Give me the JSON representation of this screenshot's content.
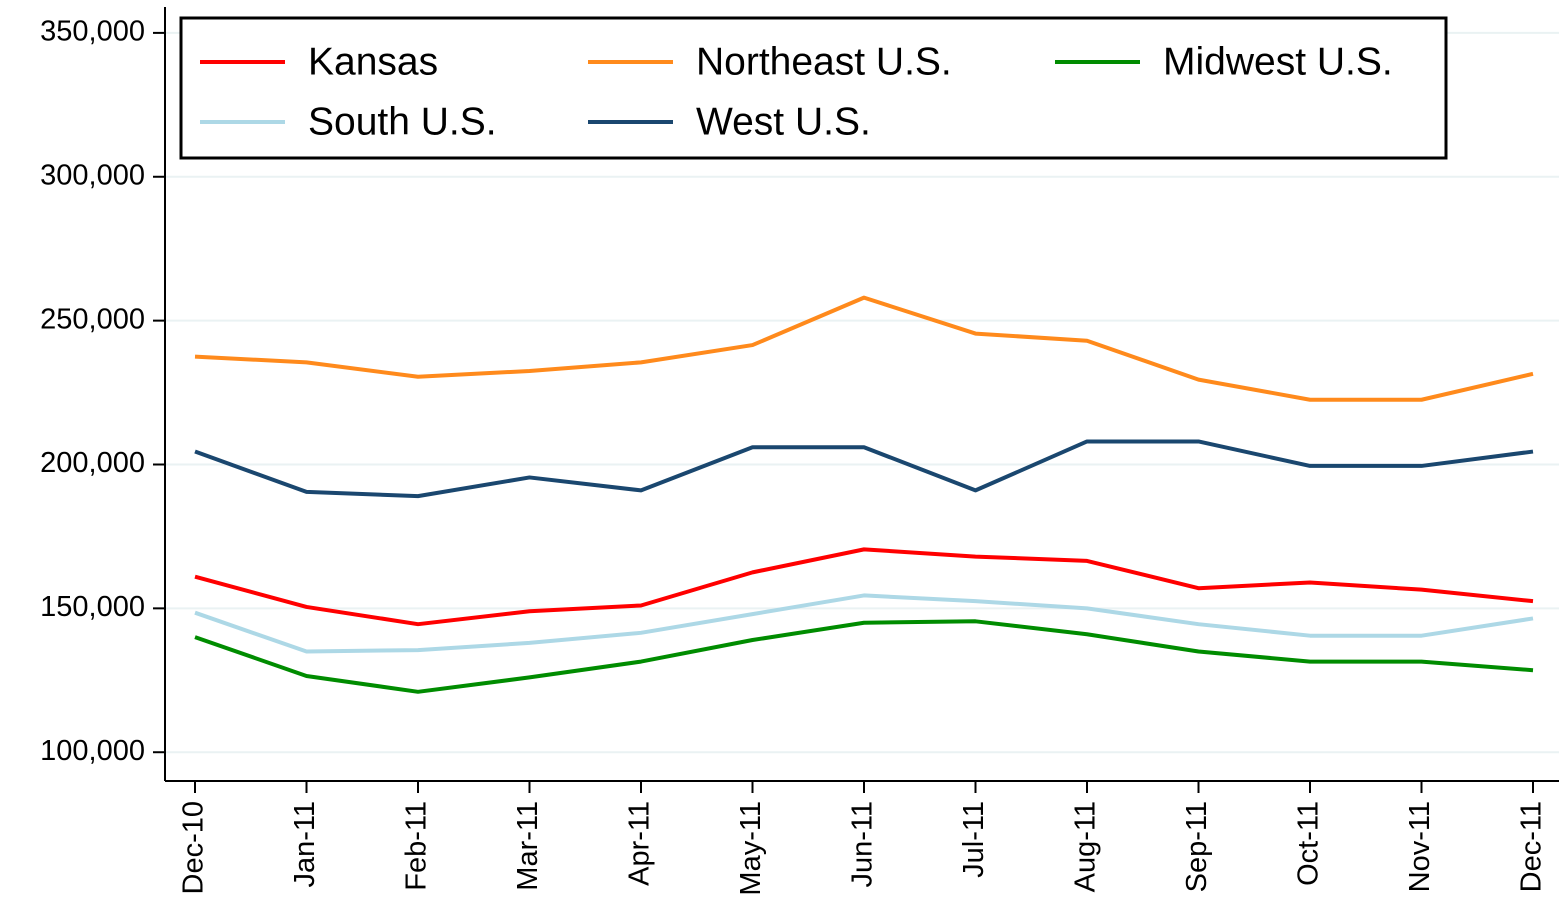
{
  "chart_data": {
    "type": "line",
    "categories": [
      "Dec-10",
      "Jan-11",
      "Feb-11",
      "Mar-11",
      "Apr-11",
      "May-11",
      "Jun-11",
      "Jul-11",
      "Aug-11",
      "Sep-11",
      "Oct-11",
      "Nov-11",
      "Dec-11"
    ],
    "series": [
      {
        "name": "Kansas",
        "color": "#ff0000",
        "values": [
          161000,
          150500,
          144500,
          149000,
          151000,
          162500,
          170500,
          168000,
          166500,
          157000,
          159000,
          156500,
          152500
        ]
      },
      {
        "name": "Northeast U.S.",
        "color": "#ff8a1c",
        "values": [
          237500,
          235500,
          230500,
          232500,
          235500,
          241500,
          258000,
          245500,
          243000,
          229500,
          222500,
          222500,
          231500
        ]
      },
      {
        "name": "Midwest U.S.",
        "color": "#008c00",
        "values": [
          140000,
          126500,
          121000,
          126000,
          131500,
          139000,
          145000,
          145500,
          141000,
          135000,
          131500,
          131500,
          128500
        ]
      },
      {
        "name": "South U.S.",
        "color": "#add8e6",
        "values": [
          148500,
          135000,
          135500,
          138000,
          141500,
          148000,
          154500,
          152500,
          150000,
          144500,
          140500,
          140500,
          146500
        ]
      },
      {
        "name": "West U.S.",
        "color": "#1a476f",
        "values": [
          204500,
          190500,
          189000,
          195500,
          191000,
          206000,
          206000,
          191000,
          208000,
          208000,
          199500,
          199500,
          204500
        ]
      }
    ],
    "ylim": [
      90000,
      359000
    ],
    "yticks": [
      {
        "value": 100000,
        "label": "100,000"
      },
      {
        "value": 150000,
        "label": "150,000"
      },
      {
        "value": 200000,
        "label": "200,000"
      },
      {
        "value": 250000,
        "label": "250,000"
      },
      {
        "value": 300000,
        "label": "300,000"
      },
      {
        "value": 350000,
        "label": "350,000"
      }
    ],
    "grid": true,
    "legend": "top"
  }
}
